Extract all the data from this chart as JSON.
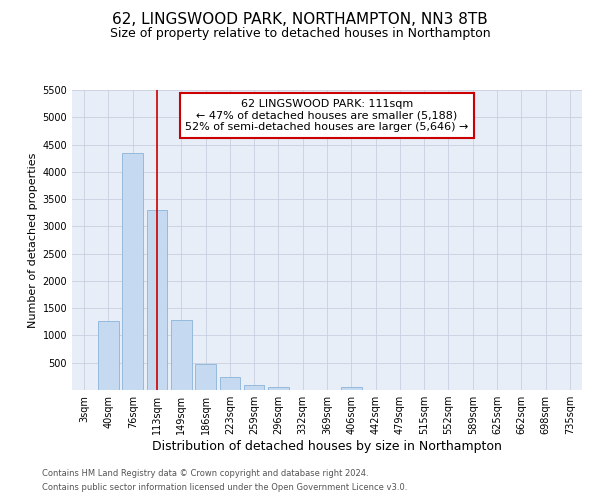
{
  "title": "62, LINGSWOOD PARK, NORTHAMPTON, NN3 8TB",
  "subtitle": "Size of property relative to detached houses in Northampton",
  "xlabel": "Distribution of detached houses by size in Northampton",
  "ylabel": "Number of detached properties",
  "categories": [
    "3sqm",
    "40sqm",
    "76sqm",
    "113sqm",
    "149sqm",
    "186sqm",
    "223sqm",
    "259sqm",
    "296sqm",
    "332sqm",
    "369sqm",
    "406sqm",
    "442sqm",
    "479sqm",
    "515sqm",
    "552sqm",
    "589sqm",
    "625sqm",
    "662sqm",
    "698sqm",
    "735sqm"
  ],
  "values": [
    0,
    1270,
    4350,
    3300,
    1290,
    480,
    240,
    90,
    60,
    0,
    0,
    55,
    0,
    0,
    0,
    0,
    0,
    0,
    0,
    0,
    0
  ],
  "bar_color": "#c5d9f0",
  "bar_edgecolor": "#8ab4d8",
  "vline_x_index": 3,
  "vline_color": "#cc0000",
  "annotation_text": "62 LINGSWOOD PARK: 111sqm\n← 47% of detached houses are smaller (5,188)\n52% of semi-detached houses are larger (5,646) →",
  "annotation_box_facecolor": "#ffffff",
  "annotation_box_edgecolor": "#cc0000",
  "ylim": [
    0,
    5500
  ],
  "yticks": [
    0,
    500,
    1000,
    1500,
    2000,
    2500,
    3000,
    3500,
    4000,
    4500,
    5000,
    5500
  ],
  "footer_line1": "Contains HM Land Registry data © Crown copyright and database right 2024.",
  "footer_line2": "Contains public sector information licensed under the Open Government Licence v3.0.",
  "bg_color": "#ffffff",
  "plot_bg_color": "#e8eef8",
  "grid_color": "#c8d0e0",
  "title_fontsize": 11,
  "subtitle_fontsize": 9,
  "ylabel_fontsize": 8,
  "xlabel_fontsize": 9,
  "tick_fontsize": 7,
  "annotation_fontsize": 8,
  "footer_fontsize": 6
}
